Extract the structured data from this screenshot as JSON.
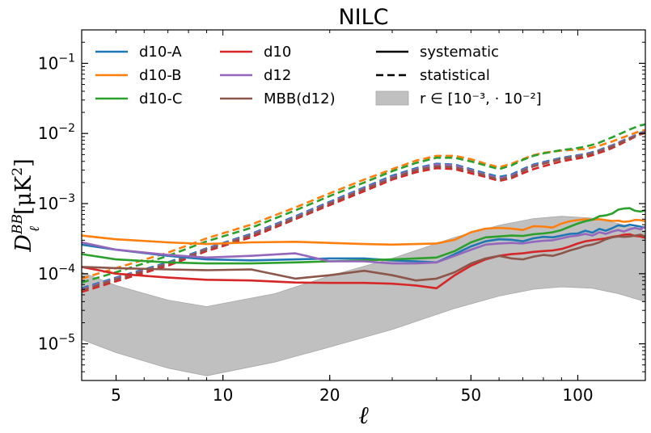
{
  "chart_data": {
    "type": "line",
    "title": "NILC",
    "xlabel": "ℓ",
    "ylabel": "D_ℓ^BB [μK²]",
    "ylabel_parts": {
      "symbol": "D",
      "sup": "BB",
      "sub": "ℓ",
      "units": "[μK",
      "units_sup": "2",
      "units_close": "]"
    },
    "xscale": "log",
    "yscale": "log",
    "xlim": [
      4,
      155
    ],
    "ylim": [
      3e-06,
      0.3
    ],
    "x_ticks": [
      {
        "value": 5,
        "label": "5"
      },
      {
        "value": 10,
        "label": "10"
      },
      {
        "value": 20,
        "label": "20"
      },
      {
        "value": 50,
        "label": "50"
      },
      {
        "value": 100,
        "label": "100"
      }
    ],
    "y_ticks": [
      {
        "value": 1e-05,
        "base": "10",
        "exp": "−5"
      },
      {
        "value": 0.0001,
        "base": "10",
        "exp": "−4"
      },
      {
        "value": 0.001,
        "base": "10",
        "exp": "−3"
      },
      {
        "value": 0.01,
        "base": "10",
        "exp": "−2"
      },
      {
        "value": 0.1,
        "base": "10",
        "exp": "−1"
      }
    ],
    "legend": {
      "position": "top",
      "entries": [
        {
          "label": "d10-A",
          "kind": "line",
          "color": "#1f77b4"
        },
        {
          "label": "d10-B",
          "kind": "line",
          "color": "#ff7f0e"
        },
        {
          "label": "d10-C",
          "kind": "line",
          "color": "#2ca02c"
        },
        {
          "label": "d10",
          "kind": "line",
          "color": "#d62728"
        },
        {
          "label": "d12",
          "kind": "line",
          "color": "#9467bd"
        },
        {
          "label": "MBB(d12)",
          "kind": "line",
          "color": "#8c564b"
        },
        {
          "label": "systematic",
          "kind": "solid",
          "color": "#000000"
        },
        {
          "label": "statistical",
          "kind": "dashed",
          "color": "#000000"
        },
        {
          "label": "r ∈ [10⁻³, · 10⁻²]",
          "kind": "band",
          "color": "#c0c0c0"
        }
      ]
    },
    "band": {
      "name": "r range",
      "color": "#c0c0c0",
      "x": [
        4,
        5,
        7,
        9,
        14,
        20,
        30,
        45,
        60,
        75,
        90,
        110,
        130,
        155
      ],
      "lower": [
        1.15e-05,
        7.5e-06,
        4.5e-06,
        3.5e-06,
        5.5e-06,
        9e-06,
        1.6e-05,
        3.2e-05,
        4.8e-05,
        6e-05,
        6.5e-05,
        6.2e-05,
        5.2e-05,
        4e-05
      ],
      "upper": [
        0.000105,
        6.8e-05,
        4.2e-05,
        3.4e-05,
        5.2e-05,
        9.3e-05,
        0.000165,
        0.00033,
        0.00049,
        0.00061,
        0.00066,
        0.00062,
        0.00052,
        0.00041
      ]
    },
    "series_x": [
      4,
      5,
      7,
      9,
      12,
      16,
      20,
      25,
      30,
      35,
      40,
      45,
      50,
      55,
      60,
      65,
      70,
      75,
      80,
      85,
      90,
      95,
      100,
      105,
      110,
      115,
      120,
      125,
      130,
      135,
      140,
      145,
      150,
      155
    ],
    "series": [
      {
        "name": "d10-A",
        "style": "solid",
        "color": "#1f77b4",
        "values": [
          0.00026,
          0.00022,
          0.00018,
          0.00016,
          0.000155,
          0.00016,
          0.000165,
          0.000165,
          0.000155,
          0.00015,
          0.000145,
          0.00019,
          0.000245,
          0.00029,
          0.00031,
          0.000305,
          0.00029,
          0.00032,
          0.000335,
          0.00033,
          0.00035,
          0.00037,
          0.000375,
          0.00041,
          0.000385,
          0.000435,
          0.00041,
          0.000445,
          0.00049,
          0.000475,
          0.0005,
          0.000485,
          0.00047,
          0.00045
        ]
      },
      {
        "name": "d10-B",
        "style": "solid",
        "color": "#ff7f0e",
        "values": [
          0.00035,
          0.00031,
          0.00028,
          0.000265,
          0.00028,
          0.000285,
          0.000275,
          0.000265,
          0.00026,
          0.000265,
          0.00027,
          0.000305,
          0.00039,
          0.00044,
          0.00045,
          0.00044,
          0.00042,
          0.000475,
          0.00047,
          0.000455,
          0.00052,
          0.00056,
          0.00058,
          0.000595,
          0.00059,
          0.0006,
          0.00058,
          0.000565,
          0.00057,
          0.00055,
          0.00056,
          0.000585,
          0.00058,
          0.00056
        ]
      },
      {
        "name": "d10-C",
        "style": "solid",
        "color": "#2ca02c",
        "values": [
          0.00019,
          0.00016,
          0.000145,
          0.00014,
          0.00014,
          0.000145,
          0.00015,
          0.000155,
          0.00016,
          0.000165,
          0.00017,
          0.00021,
          0.00028,
          0.00033,
          0.00034,
          0.00035,
          0.000345,
          0.000365,
          0.000375,
          0.00039,
          0.00042,
          0.00047,
          0.00052,
          0.00056,
          0.00059,
          0.00066,
          0.00068,
          0.00072,
          0.00082,
          0.00085,
          0.00086,
          0.00079,
          0.00077,
          0.0008
        ]
      },
      {
        "name": "d10",
        "style": "solid",
        "color": "#d62728",
        "values": [
          0.000125,
          0.0001,
          8.8e-05,
          8.2e-05,
          8e-05,
          7.5e-05,
          7.4e-05,
          7.4e-05,
          7.2e-05,
          6.8e-05,
          6.2e-05,
          9.5e-05,
          0.00013,
          0.00016,
          0.00018,
          0.00019,
          0.000195,
          0.000205,
          0.00021,
          0.000215,
          0.000225,
          0.000245,
          0.00027,
          0.00029,
          0.0003,
          0.00031,
          0.00032,
          0.000335,
          0.000345,
          0.00036,
          0.000365,
          0.000345,
          0.00034,
          0.000325
        ]
      },
      {
        "name": "d12",
        "style": "solid",
        "color": "#9467bd",
        "values": [
          0.00028,
          0.00022,
          0.000185,
          0.00017,
          0.00018,
          0.000195,
          0.00015,
          0.00015,
          0.00014,
          0.00014,
          0.000145,
          0.00018,
          0.00022,
          0.00026,
          0.00027,
          0.000275,
          0.00027,
          0.000285,
          0.000295,
          0.0003,
          0.00032,
          0.00034,
          0.00035,
          0.00037,
          0.00035,
          0.00039,
          0.00037,
          0.0004,
          0.00042,
          0.0004,
          0.00043,
          0.00045,
          0.00043,
          0.00047
        ]
      },
      {
        "name": "MBB(d12)",
        "style": "solid",
        "color": "#8c564b",
        "values": [
          0.000125,
          0.00012,
          0.000115,
          0.000112,
          0.000115,
          8.5e-05,
          9.5e-05,
          0.00011,
          9.5e-05,
          8e-05,
          8.5e-05,
          0.000105,
          0.00014,
          0.000165,
          0.00018,
          0.000165,
          0.00016,
          0.000175,
          0.000185,
          0.00018,
          0.000195,
          0.000215,
          0.00023,
          0.00025,
          0.00026,
          0.00028,
          0.00031,
          0.00033,
          0.00034,
          0.000335,
          0.00034,
          0.00035,
          0.00036,
          0.00034
        ]
      },
      {
        "name": "d10-A",
        "style": "dashed",
        "color": "#1f77b4",
        "values": [
          6.2e-05,
          8.8e-05,
          0.000145,
          0.00023,
          0.00037,
          0.00066,
          0.00106,
          0.0017,
          0.0025,
          0.0032,
          0.0037,
          0.0036,
          0.0031,
          0.0027,
          0.0024,
          0.0026,
          0.0031,
          0.0036,
          0.0039,
          0.0042,
          0.0045,
          0.0047,
          0.0049,
          0.0051,
          0.0054,
          0.0058,
          0.0063,
          0.0068,
          0.0074,
          0.0081,
          0.0087,
          0.0094,
          0.0102,
          0.0108
        ]
      },
      {
        "name": "d10-B",
        "style": "dashed",
        "color": "#ff7f0e",
        "values": [
          8.5e-05,
          0.00012,
          0.0002,
          0.00032,
          0.0005,
          0.00088,
          0.0014,
          0.0022,
          0.0031,
          0.0041,
          0.0048,
          0.0048,
          0.0043,
          0.0037,
          0.0033,
          0.0037,
          0.0043,
          0.0049,
          0.0053,
          0.0055,
          0.0057,
          0.0058,
          0.0059,
          0.006,
          0.0063,
          0.0067,
          0.0072,
          0.0077,
          0.0083,
          0.0089,
          0.0095,
          0.0102,
          0.0108,
          0.0112
        ]
      },
      {
        "name": "d10-C",
        "style": "dashed",
        "color": "#2ca02c",
        "values": [
          7.5e-05,
          0.000105,
          0.00018,
          0.00029,
          0.00045,
          0.0008,
          0.00128,
          0.002,
          0.0029,
          0.0038,
          0.0045,
          0.0045,
          0.004,
          0.0035,
          0.0031,
          0.0035,
          0.0042,
          0.0048,
          0.0052,
          0.0055,
          0.0058,
          0.006,
          0.0062,
          0.0065,
          0.0069,
          0.0074,
          0.0081,
          0.0088,
          0.0096,
          0.0105,
          0.0114,
          0.0122,
          0.013,
          0.0135
        ]
      },
      {
        "name": "d10",
        "style": "dashed",
        "color": "#d62728",
        "values": [
          5.5e-05,
          7.8e-05,
          0.00013,
          0.00021,
          0.00033,
          0.0006,
          0.00095,
          0.0015,
          0.0022,
          0.0028,
          0.0032,
          0.0031,
          0.0027,
          0.0024,
          0.0021,
          0.0023,
          0.0027,
          0.0031,
          0.0034,
          0.0037,
          0.004,
          0.0042,
          0.0044,
          0.0046,
          0.0049,
          0.0053,
          0.0057,
          0.0062,
          0.0068,
          0.0075,
          0.0082,
          0.009,
          0.0097,
          0.0102
        ]
      },
      {
        "name": "d12",
        "style": "dashed",
        "color": "#9467bd",
        "values": [
          6e-05,
          8.6e-05,
          0.00014,
          0.000225,
          0.00036,
          0.00064,
          0.00103,
          0.00165,
          0.0024,
          0.0031,
          0.0036,
          0.0035,
          0.003,
          0.0026,
          0.0023,
          0.0025,
          0.003,
          0.0035,
          0.0038,
          0.0041,
          0.0044,
          0.0046,
          0.0048,
          0.005,
          0.0053,
          0.0057,
          0.0062,
          0.0067,
          0.0073,
          0.008,
          0.0086,
          0.0093,
          0.01,
          0.0106
        ]
      },
      {
        "name": "MBB(d12)",
        "style": "dashed",
        "color": "#8c564b",
        "values": [
          5.8e-05,
          8.3e-05,
          0.000138,
          0.00022,
          0.00035,
          0.00062,
          0.001,
          0.0016,
          0.0023,
          0.003,
          0.0034,
          0.0033,
          0.0029,
          0.0025,
          0.0022,
          0.0024,
          0.0029,
          0.0034,
          0.0037,
          0.004,
          0.0043,
          0.0045,
          0.0047,
          0.0049,
          0.0052,
          0.0056,
          0.006,
          0.0065,
          0.0071,
          0.0078,
          0.0084,
          0.0091,
          0.0098,
          0.0104
        ]
      }
    ]
  }
}
